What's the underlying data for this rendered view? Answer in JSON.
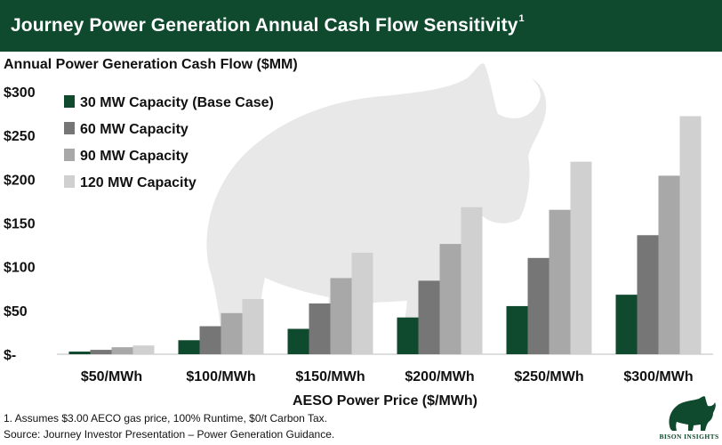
{
  "header": {
    "title": "Journey Power Generation Annual Cash Flow Sensitivity",
    "title_superscript": "1"
  },
  "chart_data": {
    "type": "bar",
    "title": "Annual Power Generation Cash Flow ($MM)",
    "xlabel": "AESO Power Price ($/MWh)",
    "ylabel": "Annual Power Generation Cash Flow ($MM)",
    "ylim": [
      0,
      300
    ],
    "yticks": [
      0,
      50,
      100,
      150,
      200,
      250,
      300
    ],
    "ytick_labels": [
      "$-",
      "$50",
      "$100",
      "$150",
      "$200",
      "$250",
      "$300"
    ],
    "categories": [
      "$50/MWh",
      "$100/MWh",
      "$150/MWh",
      "$200/MWh",
      "$250/MWh",
      "$300/MWh"
    ],
    "legend_position": "top-left",
    "grid": false,
    "series": [
      {
        "name": "30 MW Capacity (Base Case)",
        "color": "#0f4a2e",
        "values": [
          3,
          16,
          29,
          42,
          55,
          68
        ]
      },
      {
        "name": "60 MW Capacity",
        "color": "#767676",
        "values": [
          5,
          32,
          58,
          84,
          110,
          136
        ]
      },
      {
        "name": "90 MW Capacity",
        "color": "#a8a8a8",
        "values": [
          8,
          47,
          87,
          126,
          165,
          204
        ]
      },
      {
        "name": "120 MW Capacity",
        "color": "#d0d0d0",
        "values": [
          10,
          63,
          116,
          168,
          220,
          272
        ]
      }
    ]
  },
  "footnotes": {
    "note1": "1. Assumes $3.00 AECO gas price, 100% Runtime, $0/t Carbon Tax.",
    "source": "Source: Journey Investor Presentation – Power Generation Guidance."
  },
  "logo": {
    "text": "BISON INSIGHTS",
    "icon": "bison-icon"
  }
}
